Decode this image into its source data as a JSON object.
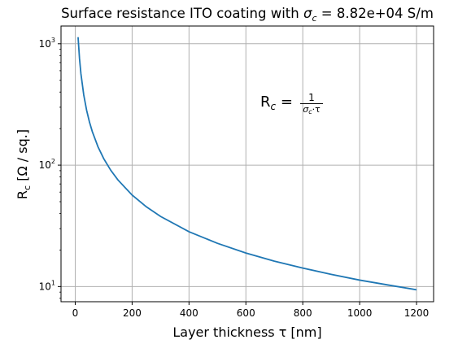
{
  "chart_data": {
    "type": "line",
    "title": "Surface resistance ITO coating with σ_c = 8.82e+04 S/m",
    "title_parts": {
      "lead": "Surface resistance ITO coating with ",
      "sigma": "σ",
      "sigma_sub": "c",
      "tail": " = 8.82e+04 S/m"
    },
    "xlabel": "Layer thickness τ [nm]",
    "ylabel": "R_c [Ω / sq.]",
    "ylabel_parts": {
      "main": "R",
      "sub": "c",
      "rest": " [Ω / sq.]"
    },
    "x_scale": "linear",
    "y_scale": "log",
    "xlim": [
      -50,
      1260
    ],
    "ylim": [
      7.5,
      1400
    ],
    "x_ticks": [
      0,
      200,
      400,
      600,
      800,
      1000,
      1200
    ],
    "y_ticks": [
      10,
      100,
      1000
    ],
    "y_tick_labels": [
      {
        "base": "10",
        "exp": "1"
      },
      {
        "base": "10",
        "exp": "2"
      },
      {
        "base": "10",
        "exp": "3"
      }
    ],
    "grid": true,
    "series": [
      {
        "color": "#1f77b4",
        "sigma_c": 88200,
        "x": [
          10,
          15,
          20,
          30,
          40,
          50,
          60,
          80,
          100,
          125,
          150,
          200,
          250,
          300,
          400,
          500,
          600,
          700,
          800,
          900,
          1000,
          1100,
          1200
        ],
        "y": [
          1133.8,
          755.9,
          566.9,
          377.9,
          283.4,
          226.8,
          189.0,
          141.7,
          113.4,
          90.7,
          75.6,
          56.7,
          45.4,
          37.8,
          28.3,
          22.7,
          18.9,
          16.2,
          14.2,
          12.6,
          11.3,
          10.3,
          9.4
        ]
      }
    ],
    "annotation": {
      "lhs_main": "R",
      "lhs_sub": "c",
      "equals": " = ",
      "numerator": "1",
      "den_sigma": "σ",
      "den_sub": "c",
      "den_rest": "·τ"
    }
  }
}
